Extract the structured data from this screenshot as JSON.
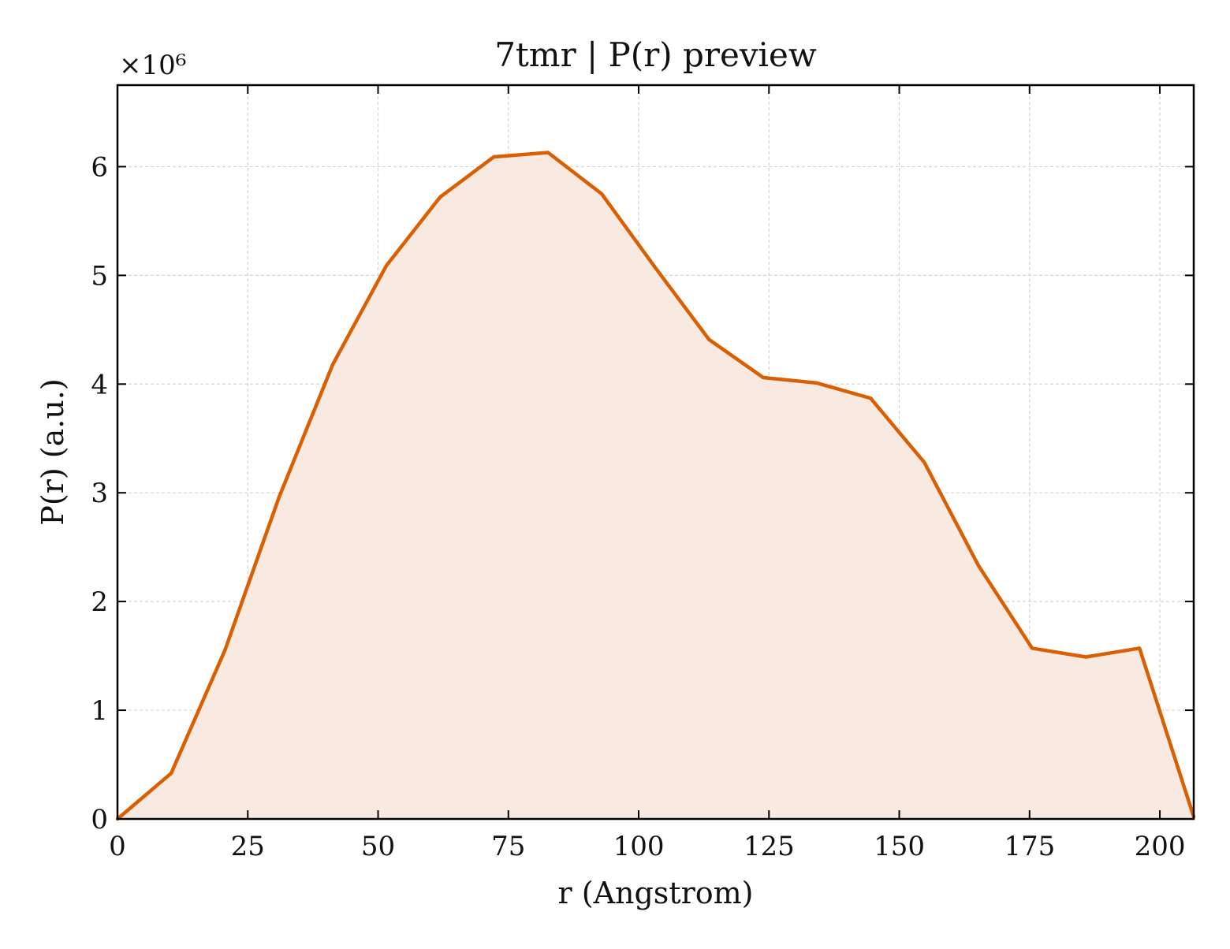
{
  "chart_data": {
    "type": "area",
    "title": "7tmr | P(r) preview",
    "xlabel": "r (Angstrom)",
    "ylabel": "P(r) (a.u.)",
    "y_multiplier_label": "×10⁶",
    "xlim": [
      0,
      206.5
    ],
    "ylim": [
      0,
      6.75
    ],
    "xticks": [
      0,
      25,
      50,
      75,
      100,
      125,
      150,
      175,
      200
    ],
    "yticks": [
      0,
      1,
      2,
      3,
      4,
      5,
      6
    ],
    "grid": true,
    "series": [
      {
        "x": [
          0,
          10.3,
          20.6,
          31.0,
          41.3,
          51.6,
          61.9,
          72.2,
          82.6,
          92.9,
          103.2,
          113.5,
          123.9,
          134.2,
          144.5,
          154.8,
          165.2,
          175.5,
          185.8,
          196.1,
          206.5
        ],
        "y": [
          0.0,
          0.42,
          1.55,
          2.96,
          4.18,
          5.09,
          5.72,
          6.09,
          6.13,
          5.75,
          5.07,
          4.41,
          4.06,
          4.01,
          3.87,
          3.28,
          2.33,
          1.57,
          1.49,
          1.57,
          0.02
        ]
      }
    ],
    "colors": {
      "line": "#D95F02",
      "fill": "#F8EAE0"
    }
  }
}
